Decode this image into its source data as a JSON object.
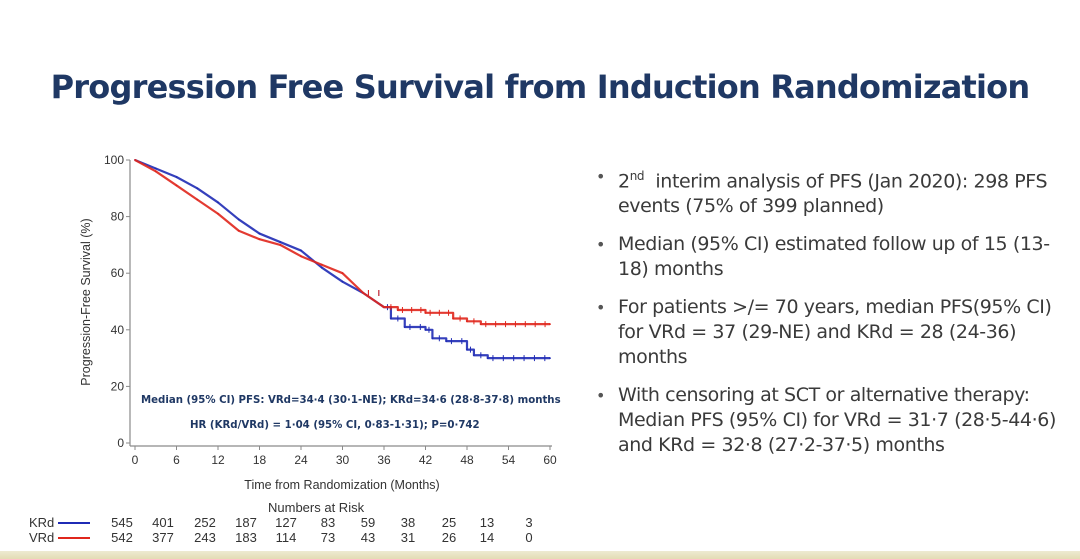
{
  "slide": {
    "title": "Progression Free Survival from Induction Randomization"
  },
  "colors": {
    "title": "#1f3864",
    "krd": "#1f2bb5",
    "vrd": "#e0261c",
    "annotation": "#1f3864",
    "body_text": "#3a3a3a",
    "footer_band": "#e3dcb4"
  },
  "chart_data": {
    "type": "line",
    "subtype": "kaplan-meier step",
    "title": "",
    "xlabel": "Time from Randomization (Months)",
    "ylabel": "Progression-Free Survival (%)",
    "xlim": [
      0,
      60
    ],
    "ylim": [
      0,
      100
    ],
    "x_ticks": [
      "0",
      "6",
      "12",
      "18",
      "24",
      "30",
      "36",
      "42",
      "48",
      "54",
      "60"
    ],
    "y_ticks": [
      "0",
      "20",
      "40",
      "60",
      "80",
      "100"
    ],
    "grid": false,
    "series": [
      {
        "name": "KRd",
        "color": "#1f2bb5",
        "x": [
          0,
          3,
          6,
          9,
          12,
          15,
          18,
          21,
          24,
          27,
          30,
          33,
          36,
          37,
          39,
          42,
          43,
          45,
          48,
          49,
          51,
          60
        ],
        "y": [
          100,
          97,
          94,
          90,
          85,
          79,
          74,
          71,
          68,
          62,
          57,
          53,
          48,
          44,
          41,
          40,
          37,
          36,
          33,
          31,
          30,
          30
        ]
      },
      {
        "name": "VRd",
        "color": "#e0261c",
        "x": [
          0,
          3,
          6,
          9,
          12,
          15,
          18,
          21,
          24,
          27,
          30,
          33,
          36,
          38,
          42,
          46,
          48,
          50,
          60
        ],
        "y": [
          100,
          96,
          91,
          86,
          81,
          75,
          72,
          70,
          66,
          63,
          60,
          53,
          48,
          47,
          46,
          44,
          43,
          42,
          42
        ]
      }
    ],
    "annotations": [
      "Median (95% CI) PFS: VRd=34·4 (30·1-NE); KRd=34·6 (28·8-37·8)  months",
      "HR (KRd/VRd) = 1·04 (95% CI, 0·83-1·31); P=0·742"
    ],
    "numbers_at_risk": {
      "title": "Numbers at Risk",
      "times": [
        0,
        6,
        12,
        18,
        24,
        30,
        36,
        42,
        48,
        54,
        60
      ],
      "rows": [
        {
          "label": "KRd",
          "values": [
            "545",
            "401",
            "252",
            "187",
            "127",
            "83",
            "59",
            "38",
            "25",
            "13",
            "3"
          ]
        },
        {
          "label": "VRd",
          "values": [
            "542",
            "377",
            "243",
            "183",
            "114",
            "73",
            "43",
            "31",
            "26",
            "14",
            "0"
          ]
        }
      ]
    }
  },
  "bullets": [
    {
      "pre": "2",
      "sup": "nd",
      "text": "  interim analysis of PFS (Jan 2020): 298 PFS events (75% of 399 planned)"
    },
    {
      "pre": "",
      "sup": "",
      "text": "Median (95% CI) estimated follow up of 15 (13-18) months"
    },
    {
      "pre": "",
      "sup": "",
      "text": "For patients >/= 70 years, median PFS(95% CI) for VRd = 37 (29-NE) and KRd = 28 (24-36) months"
    },
    {
      "pre": "",
      "sup": "",
      "text": "With censoring at SCT or alternative therapy: Median PFS (95% CI) for VRd = 31·7 (28·5-44·6) and KRd = 32·8 (27·2-37·5) months"
    }
  ]
}
